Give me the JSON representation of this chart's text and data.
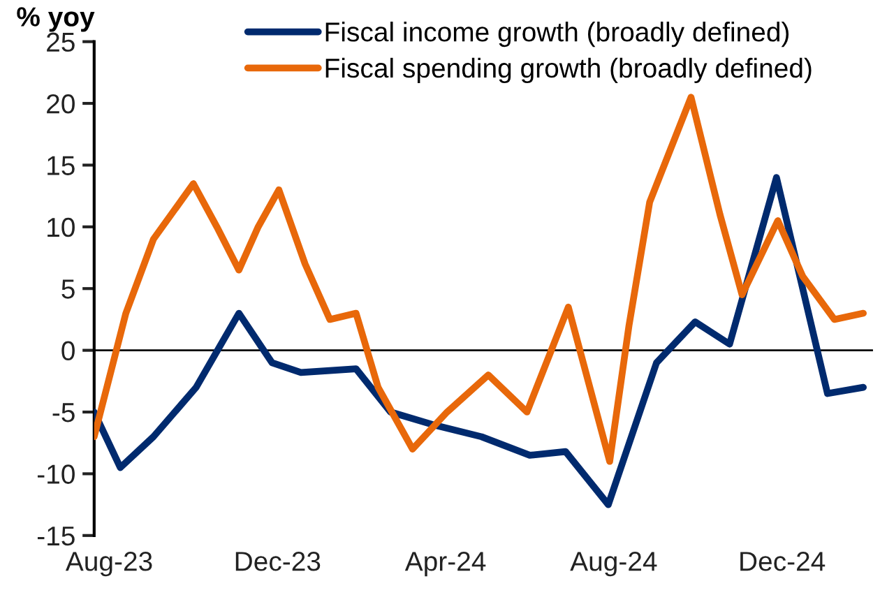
{
  "chart_data": {
    "type": "line",
    "ylabel": "% yoy",
    "legend": "top",
    "line_style": "solid",
    "marker": "none",
    "grid": false,
    "xlim": [
      "2023-07-21",
      "2025-02-05"
    ],
    "xticks": [
      {
        "value": "2023-08-01",
        "label": "Aug-23"
      },
      {
        "value": "2023-12-01",
        "label": "Dec-23"
      },
      {
        "value": "2024-04-01",
        "label": "Apr-24"
      },
      {
        "value": "2024-08-01",
        "label": "Aug-24"
      },
      {
        "value": "2024-12-01",
        "label": "Dec-24"
      }
    ],
    "ylim": [
      -15,
      25
    ],
    "yticks": [
      -15,
      -10,
      -5,
      0,
      5,
      10,
      15,
      20,
      25
    ],
    "ref_lines": [
      {
        "axis": "y",
        "value": 0,
        "color": "#000000"
      }
    ],
    "series": [
      {
        "name": "Fiscal income growth (broadly defined)",
        "color": "#002a6e",
        "x": [
          "2023-07-21",
          "2023-08-09",
          "2023-09-02",
          "2023-10-03",
          "2023-11-03",
          "2023-11-27",
          "2023-12-18",
          "2024-01-27",
          "2024-02-21",
          "2024-03-22",
          "2024-04-27",
          "2024-06-01",
          "2024-06-27",
          "2024-07-28",
          "2024-09-01",
          "2024-09-29",
          "2024-10-24",
          "2024-11-27",
          "2025-01-03",
          "2025-01-29"
        ],
        "values": [
          -5,
          -9.5,
          -7,
          -3,
          3,
          -1,
          -1.8,
          -1.5,
          -5,
          -6,
          -7,
          -8.5,
          -8.2,
          -12.5,
          -1,
          2.3,
          0.5,
          14,
          -3.5,
          -3
        ]
      },
      {
        "name": "Fiscal spending growth (broadly defined)",
        "color": "#e8680a",
        "x": [
          "2023-07-21",
          "2023-08-13",
          "2023-09-02",
          "2023-10-01",
          "2023-10-18",
          "2023-11-03",
          "2023-11-17",
          "2023-12-02",
          "2023-12-21",
          "2024-01-08",
          "2024-01-27",
          "2024-02-12",
          "2024-03-08",
          "2024-04-02",
          "2024-05-02",
          "2024-05-30",
          "2024-06-29",
          "2024-07-29",
          "2024-08-12",
          "2024-08-27",
          "2024-09-26",
          "2024-10-17",
          "2024-11-02",
          "2024-11-28",
          "2024-12-16",
          "2025-01-08",
          "2025-01-29"
        ],
        "values": [
          -7,
          3,
          9,
          13.5,
          10,
          6.5,
          10,
          13,
          7,
          2.5,
          3,
          -3,
          -8,
          -5,
          -2,
          -5,
          3.5,
          -9,
          2,
          12,
          20.5,
          11,
          4.5,
          10.5,
          6,
          2.5,
          3
        ]
      }
    ]
  }
}
